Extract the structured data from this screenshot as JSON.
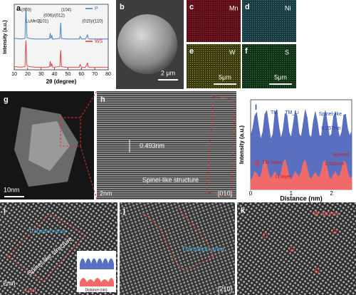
{
  "panels": [
    {
      "label": "a"
    },
    {
      "label": "b",
      "texts": [
        "2 μm"
      ]
    },
    {
      "label": "c",
      "texts": [
        "Mn"
      ]
    },
    {
      "label": "d",
      "texts": [
        "Ni"
      ]
    },
    {
      "label": "e",
      "texts": [
        "W",
        "5μm"
      ]
    },
    {
      "label": "f",
      "texts": [
        "S",
        "5μm"
      ]
    },
    {
      "label": "g",
      "texts": [
        "10nm"
      ]
    },
    {
      "label": "h",
      "texts": [
        "0.493nm",
        "Spinel-like structure",
        "2nm",
        "[010]"
      ]
    },
    {
      "label": "i",
      "texts": [
        "Spinel-like structure",
        "Transition area",
        "2nm",
        "~1nm",
        "Distance (nm)"
      ]
    },
    {
      "label": "j",
      "texts": [
        "Transition area",
        "[210]"
      ]
    },
    {
      "label": "k",
      "texts": [
        "W atoms"
      ]
    }
  ],
  "chart_data": [
    {
      "type": "line",
      "xlabel": "2θ (degree)",
      "ylabel": "Intensity (a.u.)",
      "x": [
        10,
        15,
        18,
        18.7,
        19.5,
        21,
        25,
        30,
        35,
        36.3,
        36.8,
        37.3,
        38,
        38.5,
        40,
        44,
        44.6,
        45.2,
        48,
        55,
        58.5,
        59,
        60,
        63,
        64.3,
        64.6,
        65,
        66,
        70,
        75,
        80
      ],
      "series": [
        {
          "name": "P",
          "color": "#3a78c8",
          "values": [
            48,
            47,
            48,
            95,
            49,
            48,
            47,
            47,
            47,
            48,
            56,
            48,
            52,
            47,
            47,
            48,
            72,
            48,
            47,
            47,
            47,
            51,
            47,
            47,
            52,
            54,
            48,
            47,
            47,
            47,
            47
          ]
        },
        {
          "name": "WS",
          "color": "#e03030",
          "values": [
            5,
            4,
            5,
            45,
            6,
            5,
            4,
            4,
            4,
            5,
            13,
            5,
            9,
            4,
            4,
            5,
            30,
            5,
            4,
            4,
            4,
            8,
            4,
            4,
            9,
            11,
            5,
            4,
            4,
            4,
            4
          ]
        }
      ],
      "xlim": [
        10,
        80
      ],
      "xticks": [
        10,
        20,
        30,
        40,
        50,
        60,
        70,
        80
      ],
      "ylim": [
        0,
        100
      ],
      "annotations": [
        "(003)",
        "Li₂MnO₃",
        "(101)",
        "(006)/(012)",
        "(104)",
        "(015)/(110)"
      ]
    },
    {
      "type": "area",
      "xlabel": "Distance (nm)",
      "ylabel": "Intensity (a.u.)",
      "x": [
        0,
        0.05,
        0.1,
        0.15,
        0.2,
        0.25,
        0.3,
        0.35,
        0.4,
        0.45,
        0.5,
        0.55,
        0.6,
        0.65,
        0.7,
        0.75,
        0.8,
        0.85,
        0.9,
        0.95,
        1,
        1.05,
        1.1,
        1.15,
        1.2,
        1.25,
        1.3,
        1.35,
        1.4,
        1.45,
        1.5,
        1.55,
        1.6,
        1.65,
        1.7,
        1.75,
        1.8,
        1.85,
        1.9,
        1.95,
        2,
        2.05,
        2.1,
        2.15,
        2.2,
        2.25,
        2.3,
        2.35,
        2.4,
        2.45,
        2.5
      ],
      "series": [
        {
          "name": "I",
          "color": "#5a6fc0",
          "values": [
            6.0,
            6.8,
            8.2,
            8.6,
            7.0,
            5.6,
            6.4,
            8.4,
            8.8,
            7.2,
            5.6,
            6.2,
            8.6,
            8.9,
            7.0,
            5.7,
            6.6,
            8.5,
            8.3,
            6.4,
            5.8,
            7.2,
            8.8,
            8.2,
            6.2,
            5.9,
            7.4,
            8.9,
            8.0,
            6.1,
            5.8,
            7.6,
            8.7,
            7.6,
            6.0,
            6.0,
            7.9,
            8.8,
            7.4,
            5.9,
            6.2,
            8.2,
            8.6,
            7.0,
            5.8,
            6.4,
            8.3,
            8.4,
            6.8,
            6.0,
            6.5
          ]
        },
        {
          "name": "II",
          "color": "#f06a6a",
          "values": [
            1.0,
            1.4,
            2.0,
            1.8,
            1.3,
            1.5,
            2.6,
            3.3,
            2.8,
            1.7,
            1.2,
            1.6,
            2.0,
            1.6,
            1.3,
            1.8,
            2.9,
            3.4,
            2.6,
            1.5,
            1.1,
            1.5,
            2.0,
            1.7,
            1.4,
            2.0,
            3.0,
            3.3,
            2.4,
            1.4,
            1.2,
            1.6,
            1.9,
            1.5,
            1.4,
            2.1,
            3.1,
            3.2,
            2.2,
            1.3,
            1.2,
            1.7,
            2.0,
            1.5,
            1.5,
            2.3,
            3.2,
            3.0,
            2.0,
            1.3,
            1.4
          ]
        }
      ],
      "xlim": [
        0,
        2.5
      ],
      "xticks": [
        0,
        1,
        2
      ],
      "ylim": [
        0,
        10
      ],
      "annotations": [
        "TM",
        "TM_Li",
        "Spinel-like",
        "0.257nm",
        "layered",
        "TM layer",
        "Li layer",
        "0.516nm"
      ]
    }
  ]
}
